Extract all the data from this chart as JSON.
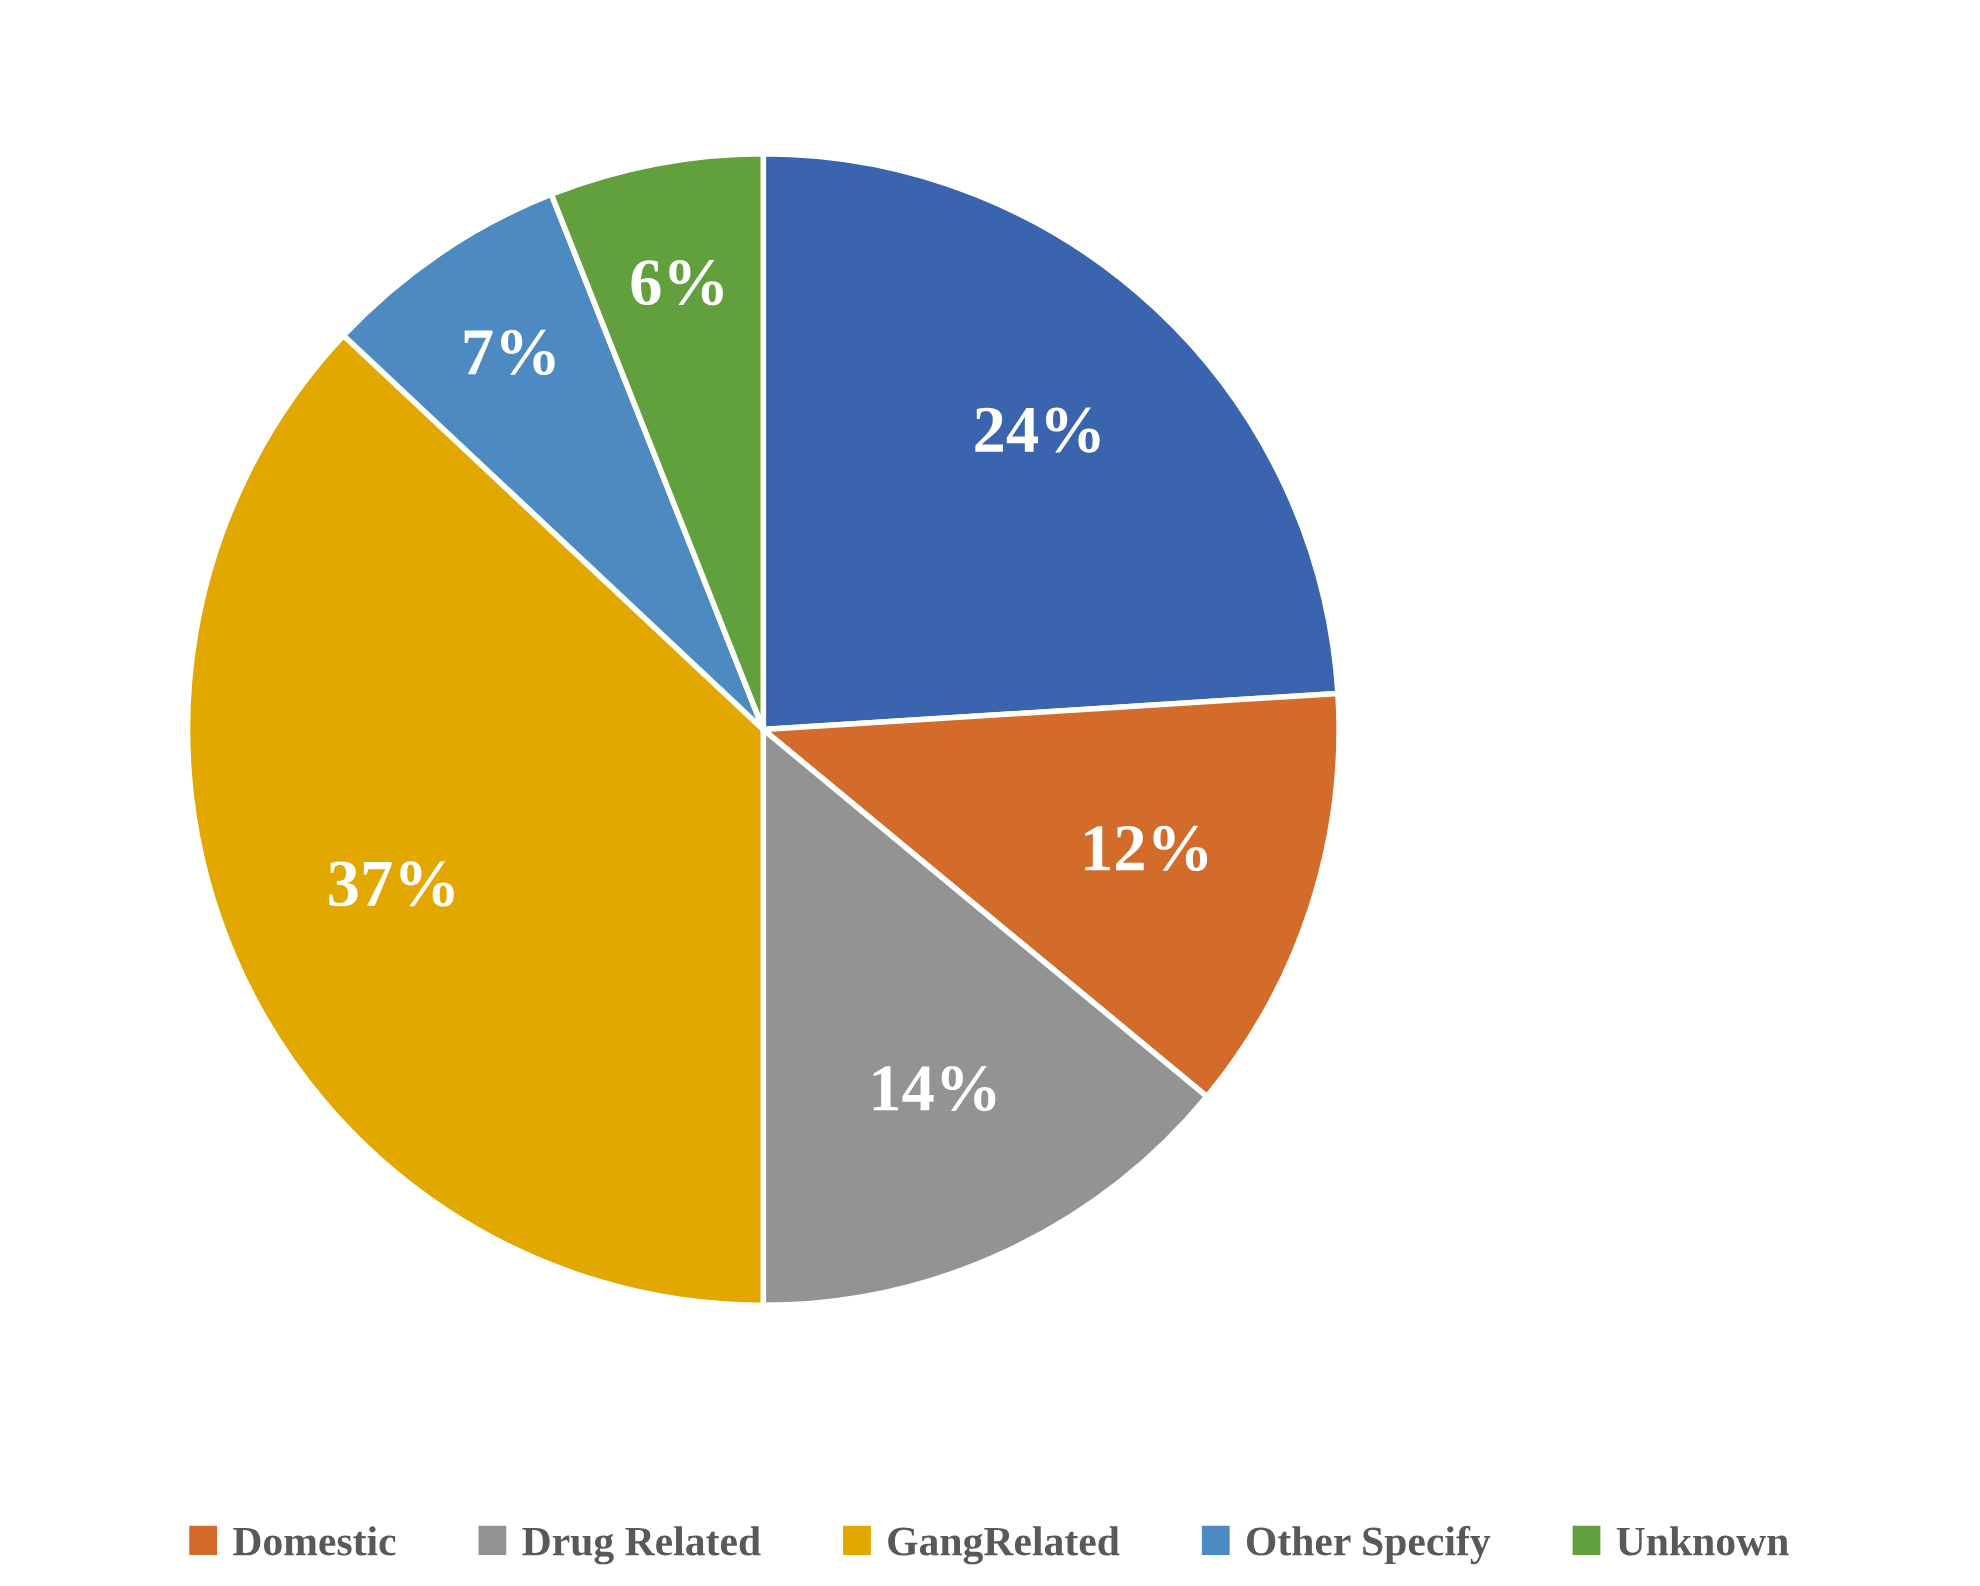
{
  "chart_data": {
    "type": "pie",
    "categories": [
      null,
      "Domestic",
      "Drug Related",
      "GangRelated",
      "Other Specify",
      "Unknown"
    ],
    "values": [
      24,
      12,
      14,
      37,
      7,
      6
    ],
    "value_labels": [
      "24%",
      "12%",
      "14%",
      "37%",
      "7%",
      "6%"
    ],
    "colors": [
      "#3a64ad",
      "#d36b2a",
      "#939393",
      "#e2a800",
      "#4d8ac1",
      "#62a03e"
    ],
    "legend": "bottom"
  }
}
